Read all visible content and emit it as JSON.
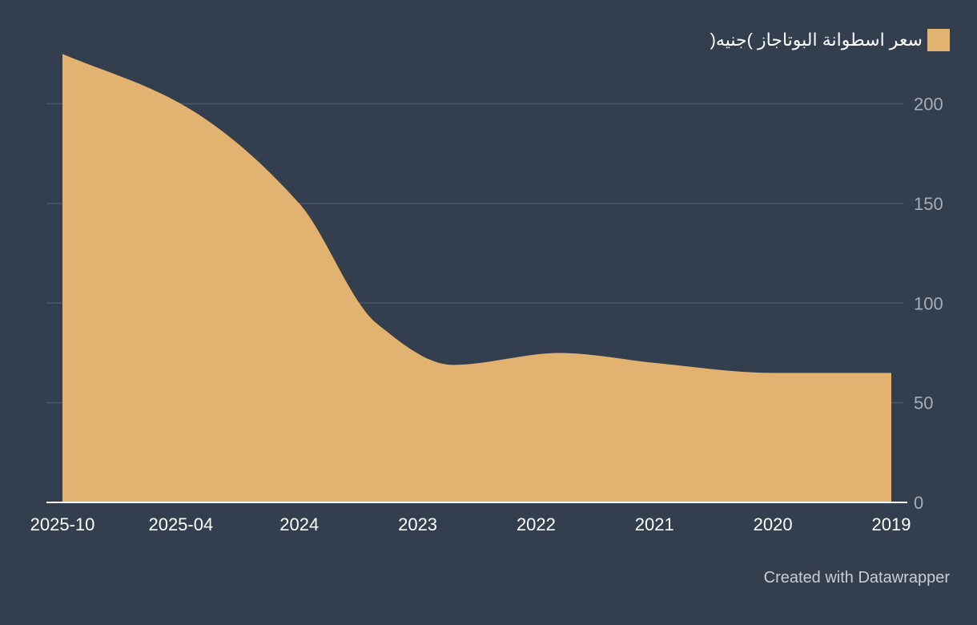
{
  "colors": {
    "background": "#333e4f",
    "area_fill": "#e2b271",
    "gridline": "#4c5868",
    "baseline": "#ffffff",
    "x_tick_text": "#ffffff",
    "y_tick_text": "#a6adb8",
    "credit_text": "#c9cdd4"
  },
  "legend": {
    "label": "سعر اسطوانة البوتاجاز )جنيه("
  },
  "credit": "Created with Datawrapper",
  "chart_data": {
    "type": "area",
    "title": "",
    "xlabel": "",
    "ylabel": "",
    "ylim": [
      0,
      240
    ],
    "x_ticks": [
      "2025-10",
      "2025-04",
      "2024",
      "2023",
      "2022",
      "2021",
      "2020",
      "2019"
    ],
    "y_ticks": [
      0,
      50,
      100,
      150,
      200
    ],
    "y_tick_labels": [
      "0",
      "50",
      "100",
      "150",
      "200"
    ],
    "grid": true,
    "legend_position": "top-right",
    "series": [
      {
        "name": "سعر اسطوانة البوتاجاز )جنيه(",
        "points": [
          {
            "x": 0.0,
            "y": 225
          },
          {
            "x": 1.0,
            "y": 200
          },
          {
            "x": 2.0,
            "y": 150
          },
          {
            "x": 2.65,
            "y": 90
          },
          {
            "x": 3.3,
            "y": 69
          },
          {
            "x": 4.2,
            "y": 75
          },
          {
            "x": 5.0,
            "y": 70
          },
          {
            "x": 6.0,
            "y": 65
          },
          {
            "x": 7.0,
            "y": 65
          }
        ]
      }
    ]
  }
}
